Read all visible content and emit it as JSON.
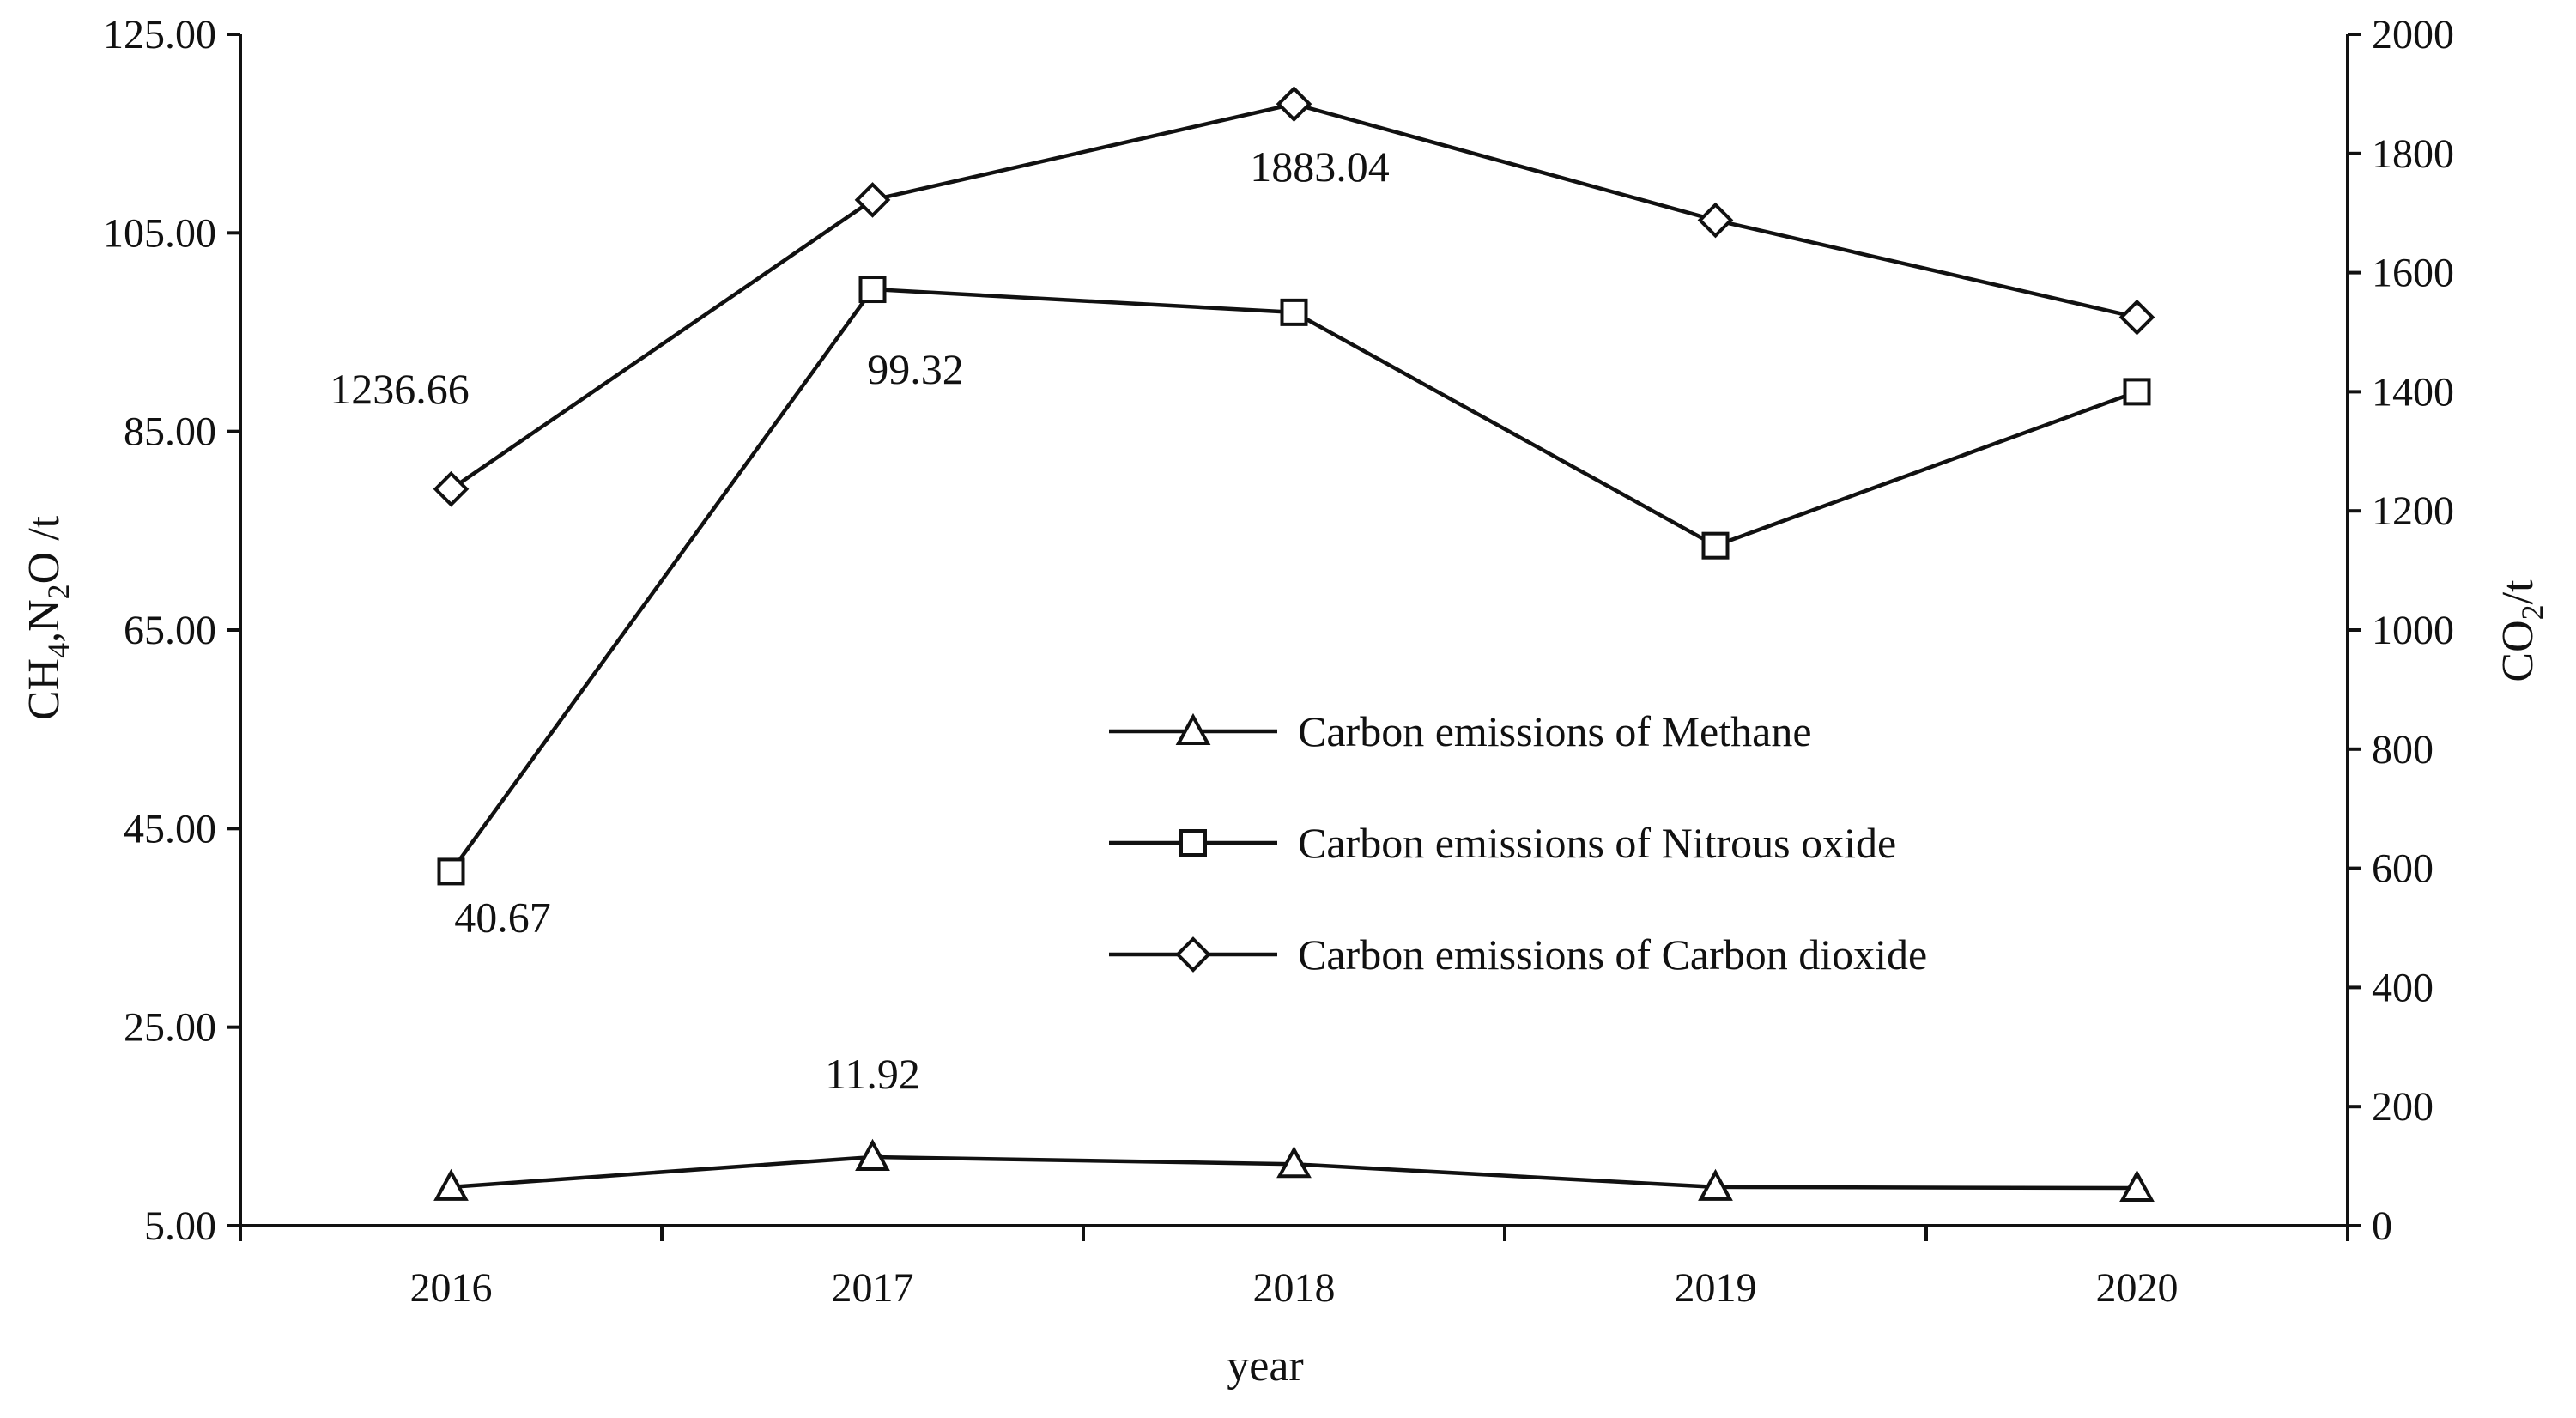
{
  "chart_data": {
    "type": "line",
    "categories": [
      "2016",
      "2017",
      "2018",
      "2019",
      "2020"
    ],
    "xlabel": "year",
    "ylabel_left": {
      "base": "CH",
      "sub1": "4",
      "mid": ",N",
      "sub2": "2",
      "rest": "O /t"
    },
    "ylabel_right": {
      "base": "CO",
      "sub": "2",
      "rest": "/t"
    },
    "ylim_left": [
      5,
      125
    ],
    "ylim_right": [
      0,
      2000
    ],
    "yticks_left": [
      "5.00",
      "25.00",
      "45.00",
      "65.00",
      "85.00",
      "105.00",
      "125.00"
    ],
    "yticks_right": [
      "0",
      "200",
      "400",
      "600",
      "800",
      "1000",
      "1200",
      "1400",
      "1600",
      "1800",
      "2000"
    ],
    "grid": false,
    "legend_position": "center",
    "series": [
      {
        "name": "Carbon emissions of Methane",
        "axis": "left",
        "marker": "triangle",
        "values": [
          8.9,
          11.92,
          11.2,
          8.9,
          8.8
        ]
      },
      {
        "name": "Carbon emissions of Nitrous oxide",
        "axis": "left",
        "marker": "square",
        "values": [
          40.67,
          99.32,
          97.0,
          73.5,
          89.0
        ]
      },
      {
        "name": "Carbon emissions of Carbon dioxide",
        "axis": "right",
        "marker": "diamond",
        "values": [
          1236.66,
          1722.0,
          1883.04,
          1688.0,
          1525.0
        ]
      }
    ],
    "data_labels": [
      "1236.66",
      "1883.04",
      "99.32",
      "40.67",
      "11.92"
    ],
    "colors": {
      "line": "#111111",
      "marker_fill": "#ffffff",
      "background": "#ffffff"
    }
  }
}
